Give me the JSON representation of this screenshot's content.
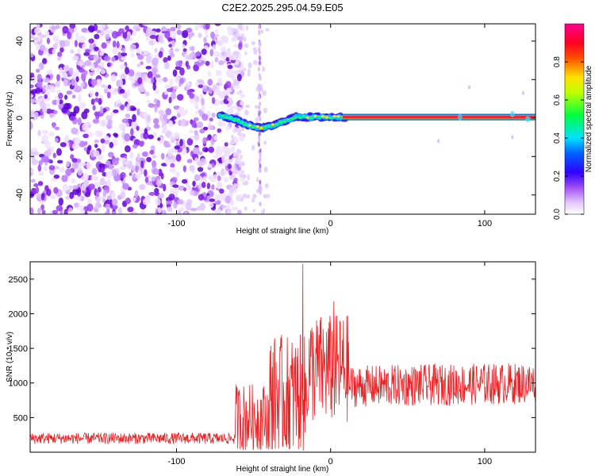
{
  "title": "C2E2.2025.295.04.59.E05",
  "chart_data": [
    {
      "type": "heatmap",
      "xlabel": "Height of straight line (km)",
      "ylabel": "Frequency (Hz)",
      "xlim": [
        -195,
        133
      ],
      "ylim": [
        -50,
        49
      ],
      "xticks": [
        -100,
        0,
        100
      ],
      "yticks": [
        -40,
        -20,
        0,
        20,
        40
      ],
      "noise_region_x": [
        -195,
        -65
      ],
      "signal_band": {
        "x_start": -72,
        "x_end": 133,
        "center_frequency_hz": 0.5,
        "dip_near_x": -45,
        "dip_frequency_hz": -4
      },
      "vertical_streak_x": -46,
      "colorbar": {
        "label": "Normalized spectral amplitude",
        "range": [
          0,
          1
        ],
        "ticks": [
          0,
          0.2,
          0.4,
          0.6,
          0.8
        ],
        "colors": [
          "#ffffff",
          "#d6a8ff",
          "#8a2be2",
          "#0000ff",
          "#00e5ff",
          "#00ff00",
          "#ffff00",
          "#ff6600",
          "#ff0000",
          "#ff00aa"
        ]
      }
    },
    {
      "type": "line",
      "xlabel": "Height of straight line (km)",
      "ylabel": "SNR (10 * v/v)",
      "xlim": [
        -195,
        133
      ],
      "ylim": [
        0,
        2750
      ],
      "xticks": [
        -100,
        0,
        100
      ],
      "yticks": [
        500,
        1000,
        1500,
        2000,
        2500
      ],
      "color": "#ee2222",
      "segments": [
        {
          "x_range": [
            -195,
            -62
          ],
          "baseline": 200,
          "noise": 80
        },
        {
          "x_range": [
            -62,
            -40
          ],
          "baseline": 500,
          "noise": 500
        },
        {
          "x_range": [
            -40,
            -15
          ],
          "baseline": 800,
          "noise": 900
        },
        {
          "x_range": [
            -15,
            12
          ],
          "baseline": 1200,
          "noise": 800
        },
        {
          "x_range": [
            12,
            133
          ],
          "baseline": 950,
          "noise": 300
        }
      ],
      "peaks": [
        {
          "x": -18,
          "y": 2720
        },
        {
          "x": 2,
          "y": 2180
        },
        {
          "x": -40,
          "y": 80
        }
      ]
    }
  ]
}
